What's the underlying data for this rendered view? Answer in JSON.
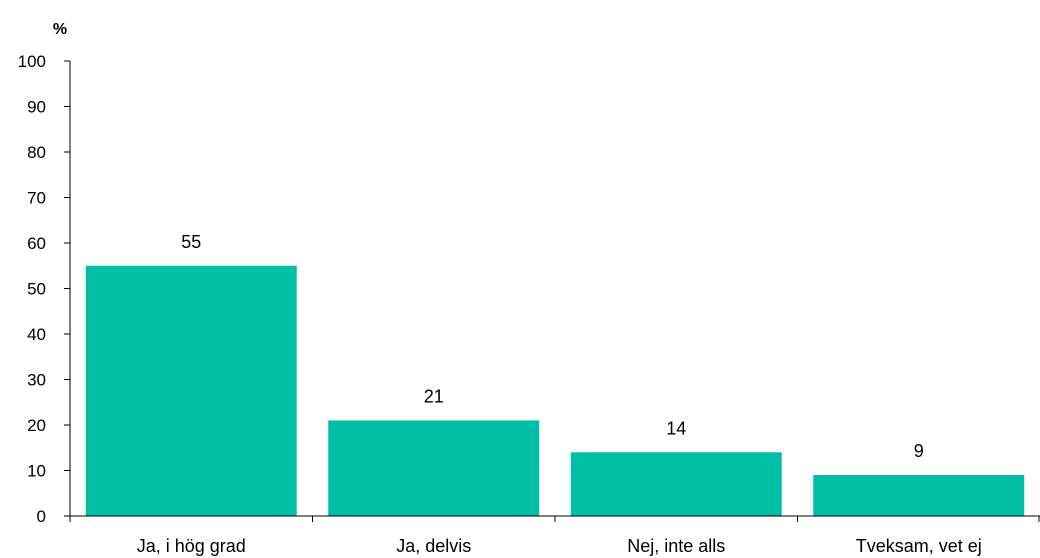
{
  "chart_data": {
    "type": "bar",
    "title": "",
    "xlabel": "",
    "ylabel": "%",
    "categories": [
      "Ja, i hög grad",
      "Ja, delvis",
      "Nej, inte alls",
      "Tveksam, vet ej"
    ],
    "values": [
      55,
      21,
      14,
      9
    ],
    "data_labels": [
      "55",
      "21",
      "14",
      "9"
    ],
    "ylim": [
      0,
      100
    ],
    "yticks": [
      0,
      10,
      20,
      30,
      40,
      50,
      60,
      70,
      80,
      90,
      100
    ],
    "ytick_labels": [
      "0",
      "10",
      "20",
      "30",
      "40",
      "50",
      "60",
      "70",
      "80",
      "90",
      "100"
    ],
    "grid": false,
    "legend": "none",
    "bar_color": "#00BFA6"
  }
}
